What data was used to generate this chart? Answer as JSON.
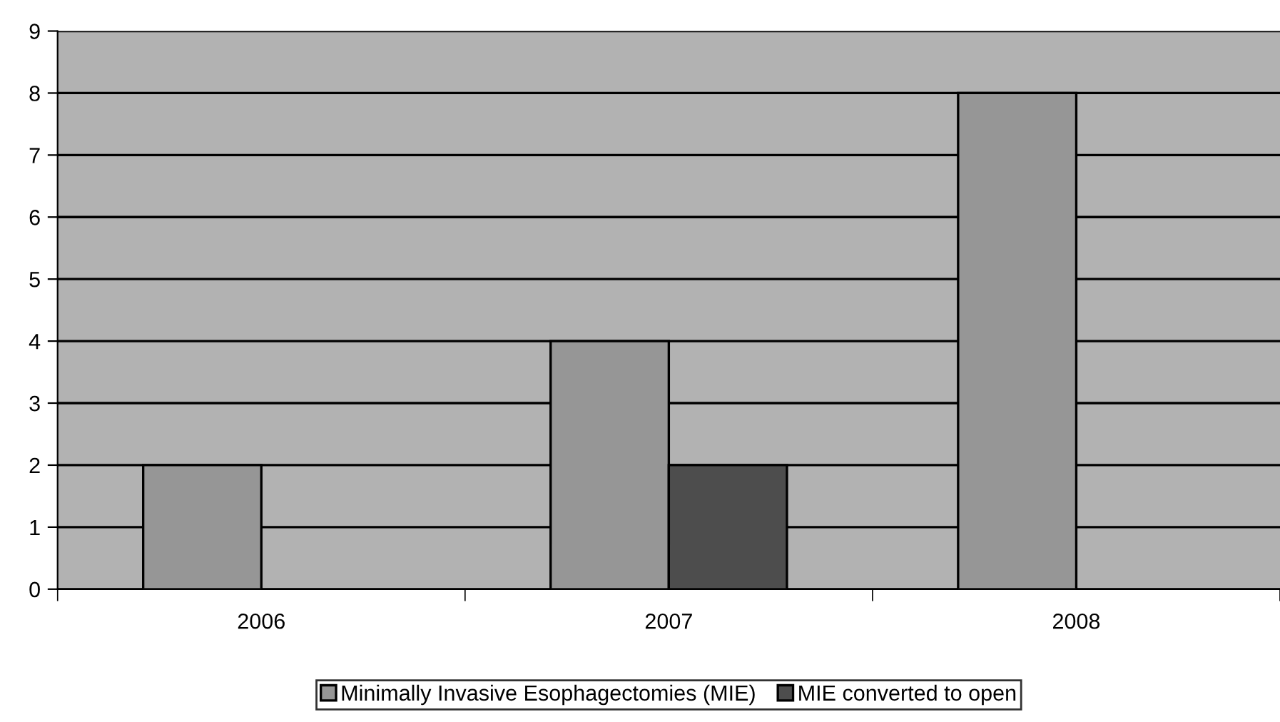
{
  "chart_data": {
    "type": "bar",
    "categories": [
      "2006",
      "2007",
      "2008"
    ],
    "series": [
      {
        "name": "Minimally Invasive Esophagectomies (MIE)",
        "color": "#969696",
        "values": [
          2,
          4,
          8
        ]
      },
      {
        "name": "MIE converted to open",
        "color": "#4d4d4d",
        "values": [
          null,
          2,
          null
        ]
      }
    ],
    "ylim": [
      0,
      9
    ],
    "yticks": [
      0,
      1,
      2,
      3,
      4,
      5,
      6,
      7,
      8,
      9
    ],
    "grid": "y",
    "legend": "bottom"
  }
}
